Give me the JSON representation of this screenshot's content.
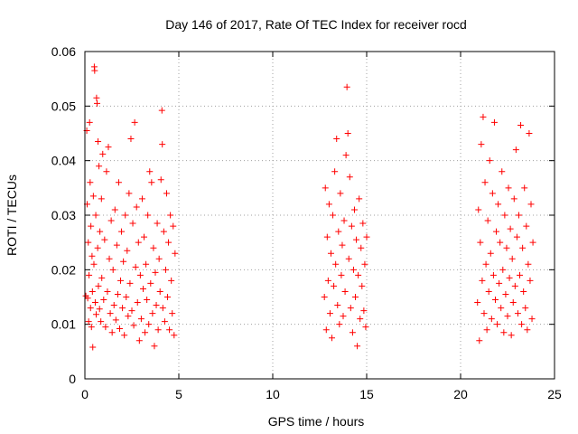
{
  "chart_data": {
    "type": "scatter",
    "title": "Day 146 of 2017, Rate Of TEC Index for receiver rocd",
    "xlabel": "GPS time / hours",
    "ylabel": "ROTI / TECUs",
    "xlim": [
      0,
      25
    ],
    "ylim": [
      0,
      0.06
    ],
    "xticks": [
      0,
      5,
      10,
      15,
      20,
      25
    ],
    "xtick_labels": [
      "0",
      "5",
      "10",
      "15",
      "20",
      "25"
    ],
    "yticks": [
      0,
      0.01,
      0.02,
      0.03,
      0.04,
      0.05,
      0.06
    ],
    "ytick_labels": [
      "0",
      "0.01",
      "0.02",
      "0.03",
      "0.04",
      "0.05",
      "0.06"
    ],
    "grid": true,
    "marker": "plus",
    "marker_color": "#ff0000",
    "series": [
      {
        "points": [
          [
            0.05,
            0.0152
          ],
          [
            0.1,
            0.0455
          ],
          [
            0.12,
            0.032
          ],
          [
            0.15,
            0.0148
          ],
          [
            0.18,
            0.025
          ],
          [
            0.2,
            0.0105
          ],
          [
            0.22,
            0.019
          ],
          [
            0.25,
            0.047
          ],
          [
            0.28,
            0.036
          ],
          [
            0.3,
            0.013
          ],
          [
            0.32,
            0.028
          ],
          [
            0.35,
            0.0095
          ],
          [
            0.38,
            0.0225
          ],
          [
            0.4,
            0.016
          ],
          [
            0.42,
            0.0058
          ],
          [
            0.45,
            0.0335
          ],
          [
            0.48,
            0.021
          ],
          [
            0.5,
            0.0572
          ],
          [
            0.52,
            0.0565
          ],
          [
            0.55,
            0.014
          ],
          [
            0.58,
            0.03
          ],
          [
            0.6,
            0.0118
          ],
          [
            0.62,
            0.0515
          ],
          [
            0.65,
            0.0505
          ],
          [
            0.68,
            0.024
          ],
          [
            0.7,
            0.0435
          ],
          [
            0.72,
            0.017
          ],
          [
            0.75,
            0.039
          ],
          [
            0.78,
            0.0128
          ],
          [
            0.8,
            0.027
          ],
          [
            0.85,
            0.0105
          ],
          [
            0.88,
            0.033
          ],
          [
            0.9,
            0.0185
          ],
          [
            0.95,
            0.0412
          ],
          [
            1.0,
            0.0145
          ],
          [
            1.05,
            0.0255
          ],
          [
            1.1,
            0.0095
          ],
          [
            1.15,
            0.038
          ],
          [
            1.2,
            0.016
          ],
          [
            1.25,
            0.0425
          ],
          [
            1.3,
            0.022
          ],
          [
            1.35,
            0.012
          ],
          [
            1.4,
            0.029
          ],
          [
            1.45,
            0.0085
          ],
          [
            1.5,
            0.02
          ],
          [
            1.55,
            0.0135
          ],
          [
            1.6,
            0.031
          ],
          [
            1.65,
            0.0108
          ],
          [
            1.7,
            0.0245
          ],
          [
            1.75,
            0.0155
          ],
          [
            1.8,
            0.036
          ],
          [
            1.85,
            0.0092
          ],
          [
            1.9,
            0.018
          ],
          [
            1.95,
            0.027
          ],
          [
            2.0,
            0.013
          ],
          [
            2.05,
            0.0215
          ],
          [
            2.1,
            0.008
          ],
          [
            2.15,
            0.03
          ],
          [
            2.2,
            0.015
          ],
          [
            2.25,
            0.0235
          ],
          [
            2.3,
            0.0115
          ],
          [
            2.35,
            0.034
          ],
          [
            2.4,
            0.0175
          ],
          [
            2.45,
            0.044
          ],
          [
            2.5,
            0.0125
          ],
          [
            2.55,
            0.0285
          ],
          [
            2.6,
            0.0098
          ],
          [
            2.65,
            0.047
          ],
          [
            2.7,
            0.0205
          ],
          [
            2.75,
            0.0315
          ],
          [
            2.8,
            0.014
          ],
          [
            2.85,
            0.025
          ],
          [
            2.9,
            0.007
          ],
          [
            2.95,
            0.019
          ],
          [
            3.0,
            0.011
          ],
          [
            3.05,
            0.033
          ],
          [
            3.1,
            0.0165
          ],
          [
            3.15,
            0.026
          ],
          [
            3.2,
            0.0085
          ],
          [
            3.25,
            0.021
          ],
          [
            3.3,
            0.0145
          ],
          [
            3.35,
            0.03
          ],
          [
            3.4,
            0.01
          ],
          [
            3.45,
            0.038
          ],
          [
            3.5,
            0.0175
          ],
          [
            3.55,
            0.036
          ],
          [
            3.6,
            0.012
          ],
          [
            3.65,
            0.024
          ],
          [
            3.7,
            0.006
          ],
          [
            3.75,
            0.0195
          ],
          [
            3.8,
            0.0135
          ],
          [
            3.85,
            0.0285
          ],
          [
            3.9,
            0.009
          ],
          [
            3.95,
            0.022
          ],
          [
            4.0,
            0.016
          ],
          [
            4.05,
            0.0365
          ],
          [
            4.1,
            0.0492
          ],
          [
            4.12,
            0.043
          ],
          [
            4.15,
            0.013
          ],
          [
            4.2,
            0.027
          ],
          [
            4.25,
            0.0105
          ],
          [
            4.3,
            0.02
          ],
          [
            4.35,
            0.034
          ],
          [
            4.4,
            0.015
          ],
          [
            4.45,
            0.025
          ],
          [
            4.5,
            0.009
          ],
          [
            4.55,
            0.03
          ],
          [
            4.6,
            0.018
          ],
          [
            4.65,
            0.012
          ],
          [
            4.7,
            0.028
          ],
          [
            4.75,
            0.008
          ],
          [
            4.8,
            0.023
          ],
          [
            12.75,
            0.015
          ],
          [
            12.8,
            0.035
          ],
          [
            12.85,
            0.009
          ],
          [
            12.9,
            0.026
          ],
          [
            12.95,
            0.018
          ],
          [
            13.0,
            0.032
          ],
          [
            13.05,
            0.012
          ],
          [
            13.1,
            0.023
          ],
          [
            13.15,
            0.0075
          ],
          [
            13.2,
            0.03
          ],
          [
            13.25,
            0.017
          ],
          [
            13.3,
            0.038
          ],
          [
            13.35,
            0.021
          ],
          [
            13.4,
            0.044
          ],
          [
            13.45,
            0.0135
          ],
          [
            13.5,
            0.027
          ],
          [
            13.55,
            0.01
          ],
          [
            13.6,
            0.034
          ],
          [
            13.65,
            0.019
          ],
          [
            13.7,
            0.0245
          ],
          [
            13.75,
            0.0115
          ],
          [
            13.8,
            0.029
          ],
          [
            13.85,
            0.016
          ],
          [
            13.9,
            0.041
          ],
          [
            13.95,
            0.0535
          ],
          [
            14.0,
            0.045
          ],
          [
            14.05,
            0.022
          ],
          [
            14.1,
            0.037
          ],
          [
            14.15,
            0.013
          ],
          [
            14.2,
            0.028
          ],
          [
            14.25,
            0.0085
          ],
          [
            14.3,
            0.02
          ],
          [
            14.35,
            0.031
          ],
          [
            14.4,
            0.015
          ],
          [
            14.45,
            0.0255
          ],
          [
            14.5,
            0.006
          ],
          [
            14.55,
            0.019
          ],
          [
            14.6,
            0.033
          ],
          [
            14.65,
            0.011
          ],
          [
            14.7,
            0.024
          ],
          [
            14.75,
            0.017
          ],
          [
            14.8,
            0.0285
          ],
          [
            14.85,
            0.0125
          ],
          [
            14.9,
            0.021
          ],
          [
            14.95,
            0.0095
          ],
          [
            15.0,
            0.026
          ],
          [
            20.9,
            0.014
          ],
          [
            20.95,
            0.031
          ],
          [
            21.0,
            0.007
          ],
          [
            21.05,
            0.025
          ],
          [
            21.1,
            0.043
          ],
          [
            21.15,
            0.018
          ],
          [
            21.2,
            0.048
          ],
          [
            21.25,
            0.012
          ],
          [
            21.3,
            0.036
          ],
          [
            21.35,
            0.021
          ],
          [
            21.4,
            0.009
          ],
          [
            21.45,
            0.029
          ],
          [
            21.5,
            0.016
          ],
          [
            21.55,
            0.04
          ],
          [
            21.6,
            0.023
          ],
          [
            21.65,
            0.011
          ],
          [
            21.7,
            0.034
          ],
          [
            21.75,
            0.019
          ],
          [
            21.8,
            0.047
          ],
          [
            21.85,
            0.0145
          ],
          [
            21.9,
            0.027
          ],
          [
            21.95,
            0.01
          ],
          [
            22.0,
            0.032
          ],
          [
            22.05,
            0.0175
          ],
          [
            22.1,
            0.025
          ],
          [
            22.15,
            0.013
          ],
          [
            22.2,
            0.038
          ],
          [
            22.25,
            0.02
          ],
          [
            22.3,
            0.0085
          ],
          [
            22.35,
            0.03
          ],
          [
            22.4,
            0.0155
          ],
          [
            22.45,
            0.024
          ],
          [
            22.5,
            0.0115
          ],
          [
            22.55,
            0.035
          ],
          [
            22.6,
            0.0185
          ],
          [
            22.65,
            0.0275
          ],
          [
            22.7,
            0.008
          ],
          [
            22.75,
            0.022
          ],
          [
            22.8,
            0.014
          ],
          [
            22.85,
            0.033
          ],
          [
            22.9,
            0.017
          ],
          [
            22.95,
            0.042
          ],
          [
            23.0,
            0.026
          ],
          [
            23.05,
            0.012
          ],
          [
            23.1,
            0.03
          ],
          [
            23.15,
            0.019
          ],
          [
            23.2,
            0.0465
          ],
          [
            23.25,
            0.01
          ],
          [
            23.3,
            0.024
          ],
          [
            23.35,
            0.016
          ],
          [
            23.4,
            0.035
          ],
          [
            23.45,
            0.013
          ],
          [
            23.5,
            0.028
          ],
          [
            23.55,
            0.009
          ],
          [
            23.6,
            0.021
          ],
          [
            23.65,
            0.045
          ],
          [
            23.7,
            0.018
          ],
          [
            23.75,
            0.032
          ],
          [
            23.8,
            0.011
          ],
          [
            23.85,
            0.025
          ]
        ]
      }
    ]
  }
}
